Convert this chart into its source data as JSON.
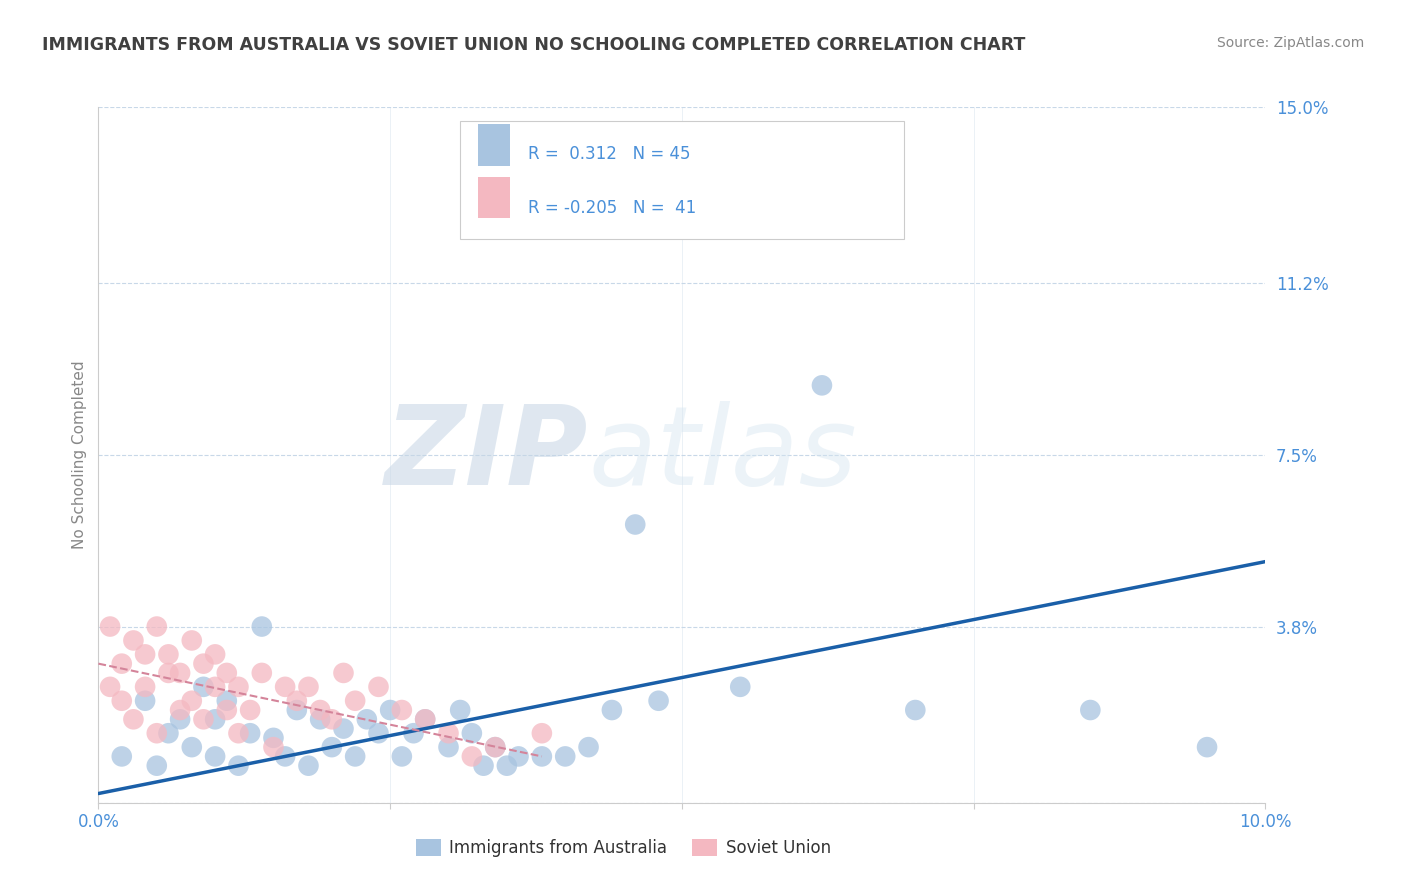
{
  "title": "IMMIGRANTS FROM AUSTRALIA VS SOVIET UNION NO SCHOOLING COMPLETED CORRELATION CHART",
  "source": "Source: ZipAtlas.com",
  "ylabel": "No Schooling Completed",
  "xlim": [
    0,
    0.1
  ],
  "ylim": [
    0,
    0.15
  ],
  "ytick_positions": [
    0.0,
    0.038,
    0.075,
    0.112,
    0.15
  ],
  "yticklabels": [
    "",
    "3.8%",
    "7.5%",
    "11.2%",
    "15.0%"
  ],
  "xtick_positions": [
    0.0,
    0.025,
    0.05,
    0.075,
    0.1
  ],
  "xticklabels": [
    "0.0%",
    "",
    "",
    "",
    "10.0%"
  ],
  "australia_color": "#a8c4e0",
  "soviet_color": "#f4b8c1",
  "australia_line_color": "#1a5fa8",
  "soviet_line_color": "#d4849a",
  "legend_australia_label": "Immigrants from Australia",
  "legend_soviet_label": "Soviet Union",
  "R_australia": "0.312",
  "N_australia": "45",
  "R_soviet": "-0.205",
  "N_soviet": "41",
  "watermark_zip": "ZIP",
  "watermark_atlas": "atlas",
  "background_color": "#ffffff",
  "grid_color": "#c8d8e8",
  "title_color": "#404040",
  "axis_label_color": "#888888",
  "tick_label_color": "#4a90d9",
  "legend_text_color": "#333333",
  "source_color": "#888888",
  "australia_points_x": [
    0.002,
    0.004,
    0.005,
    0.006,
    0.007,
    0.008,
    0.009,
    0.01,
    0.01,
    0.011,
    0.012,
    0.013,
    0.014,
    0.015,
    0.016,
    0.017,
    0.018,
    0.019,
    0.02,
    0.021,
    0.022,
    0.023,
    0.024,
    0.025,
    0.026,
    0.027,
    0.028,
    0.03,
    0.031,
    0.032,
    0.033,
    0.034,
    0.035,
    0.036,
    0.038,
    0.04,
    0.042,
    0.044,
    0.046,
    0.048,
    0.055,
    0.062,
    0.07,
    0.085,
    0.095
  ],
  "australia_points_y": [
    0.01,
    0.022,
    0.008,
    0.015,
    0.018,
    0.012,
    0.025,
    0.01,
    0.018,
    0.022,
    0.008,
    0.015,
    0.038,
    0.014,
    0.01,
    0.02,
    0.008,
    0.018,
    0.012,
    0.016,
    0.01,
    0.018,
    0.015,
    0.02,
    0.01,
    0.015,
    0.018,
    0.012,
    0.02,
    0.015,
    0.008,
    0.012,
    0.008,
    0.01,
    0.01,
    0.01,
    0.012,
    0.02,
    0.06,
    0.022,
    0.025,
    0.09,
    0.02,
    0.02,
    0.012
  ],
  "soviet_points_x": [
    0.001,
    0.001,
    0.002,
    0.002,
    0.003,
    0.003,
    0.004,
    0.004,
    0.005,
    0.005,
    0.006,
    0.006,
    0.007,
    0.007,
    0.008,
    0.008,
    0.009,
    0.009,
    0.01,
    0.01,
    0.011,
    0.011,
    0.012,
    0.012,
    0.013,
    0.014,
    0.015,
    0.016,
    0.017,
    0.018,
    0.019,
    0.02,
    0.021,
    0.022,
    0.024,
    0.026,
    0.028,
    0.03,
    0.032,
    0.034,
    0.038
  ],
  "soviet_points_y": [
    0.025,
    0.038,
    0.022,
    0.03,
    0.035,
    0.018,
    0.032,
    0.025,
    0.038,
    0.015,
    0.028,
    0.032,
    0.02,
    0.028,
    0.022,
    0.035,
    0.018,
    0.03,
    0.025,
    0.032,
    0.02,
    0.028,
    0.015,
    0.025,
    0.02,
    0.028,
    0.012,
    0.025,
    0.022,
    0.025,
    0.02,
    0.018,
    0.028,
    0.022,
    0.025,
    0.02,
    0.018,
    0.015,
    0.01,
    0.012,
    0.015
  ],
  "aus_trend_x0": 0.0,
  "aus_trend_x1": 0.1,
  "aus_trend_y0": 0.002,
  "aus_trend_y1": 0.052,
  "sov_trend_x0": 0.0,
  "sov_trend_x1": 0.038,
  "sov_trend_y0": 0.03,
  "sov_trend_y1": 0.01
}
